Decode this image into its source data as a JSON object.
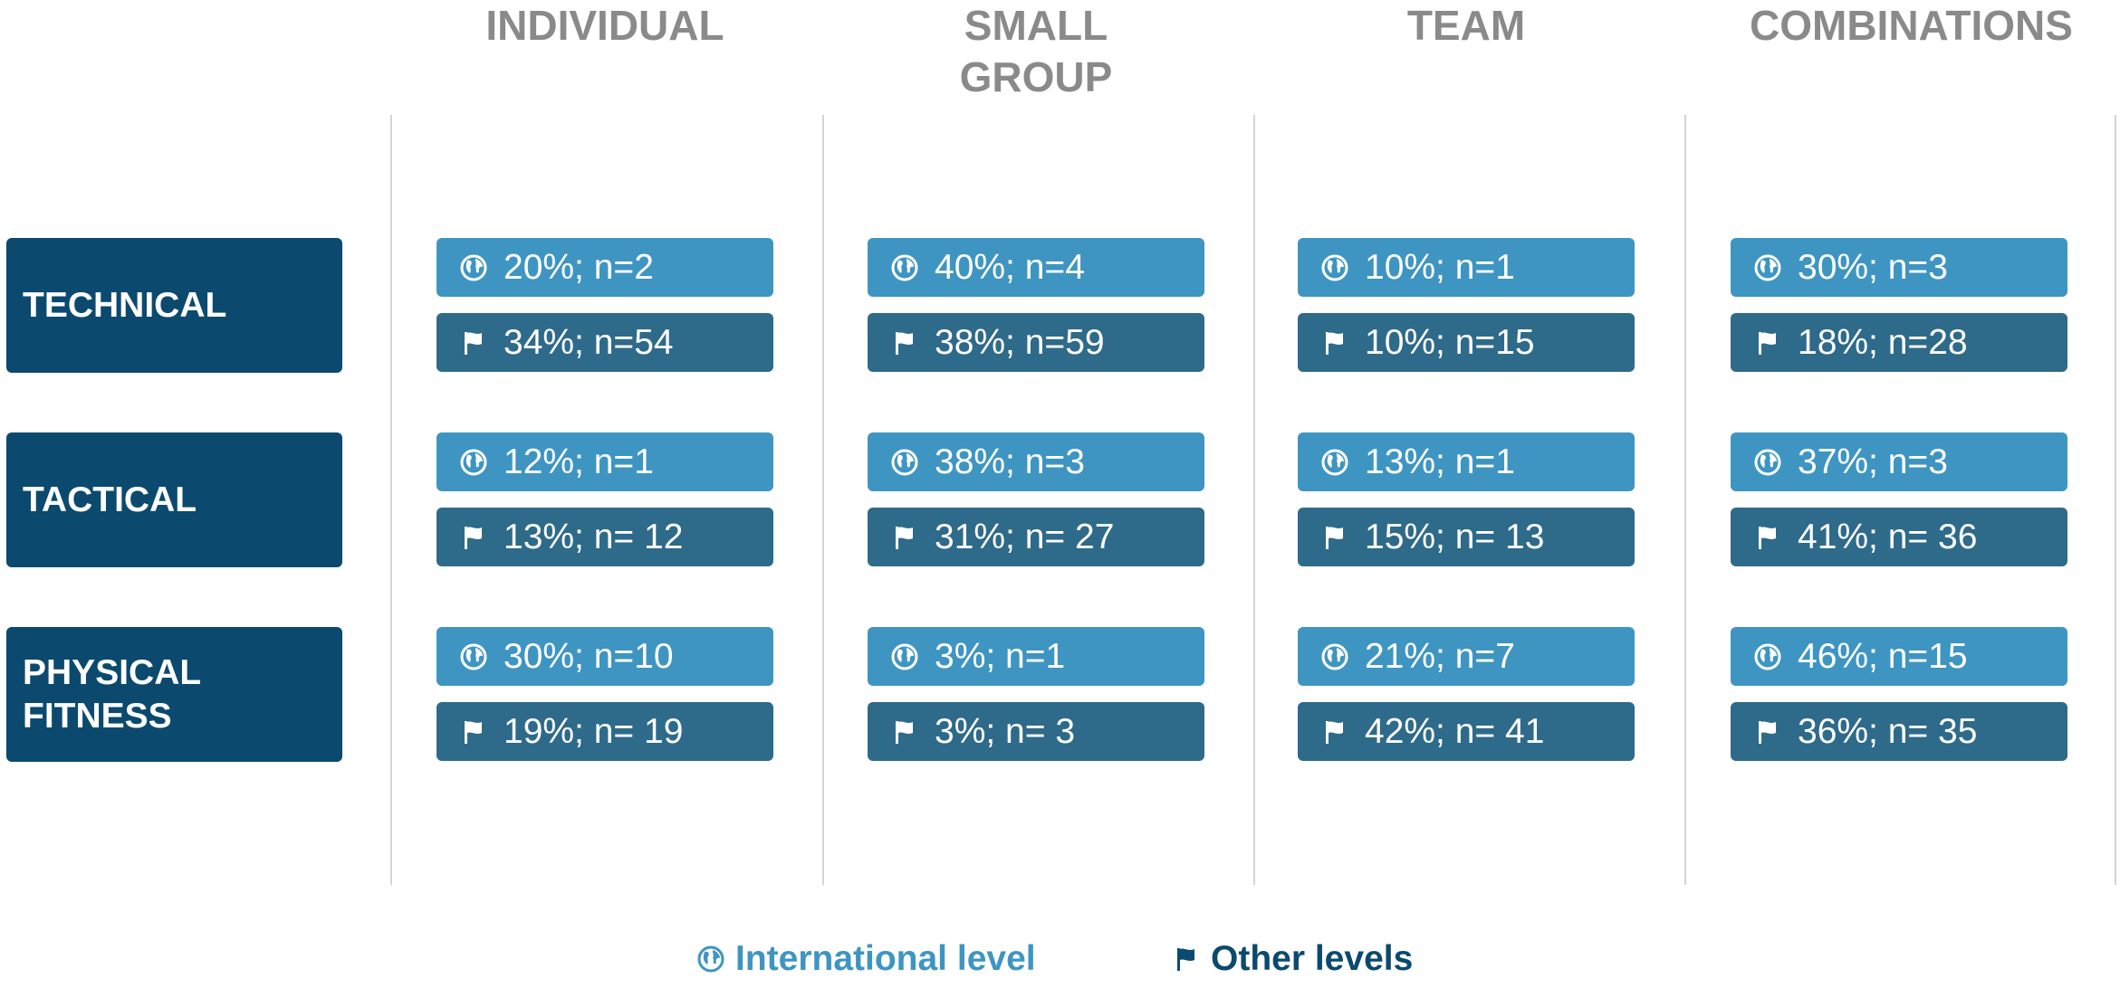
{
  "columns": [
    "INDIVIDUAL",
    "SMALL GROUP",
    "TEAM",
    "COMBINATIONS"
  ],
  "rows": [
    {
      "label": "TECHNICAL",
      "cells": [
        {
          "international": "20%; n=2",
          "other": "34%; n=54"
        },
        {
          "international": "40%; n=4",
          "other": "38%; n=59"
        },
        {
          "international": "10%; n=1",
          "other": "10%; n=15"
        },
        {
          "international": "30%; n=3",
          "other": "18%; n=28"
        }
      ]
    },
    {
      "label": "TACTICAL",
      "cells": [
        {
          "international": "12%; n=1",
          "other": "13%; n= 12"
        },
        {
          "international": "38%; n=3",
          "other": "31%; n= 27"
        },
        {
          "international": "13%; n=1",
          "other": "15%; n= 13"
        },
        {
          "international": "37%; n=3",
          "other": "41%; n= 36"
        }
      ]
    },
    {
      "label": "PHYSICAL FITNESS",
      "cells": [
        {
          "international": "30%; n=10",
          "other": "19%; n= 19"
        },
        {
          "international": "3%; n=1",
          "other": "3%; n= 3"
        },
        {
          "international": "21%; n=7",
          "other": "42%; n= 41"
        },
        {
          "international": "46%; n=15",
          "other": "36%; n= 35"
        }
      ]
    }
  ],
  "legend": {
    "international": "International level",
    "other": "Other levels"
  }
}
